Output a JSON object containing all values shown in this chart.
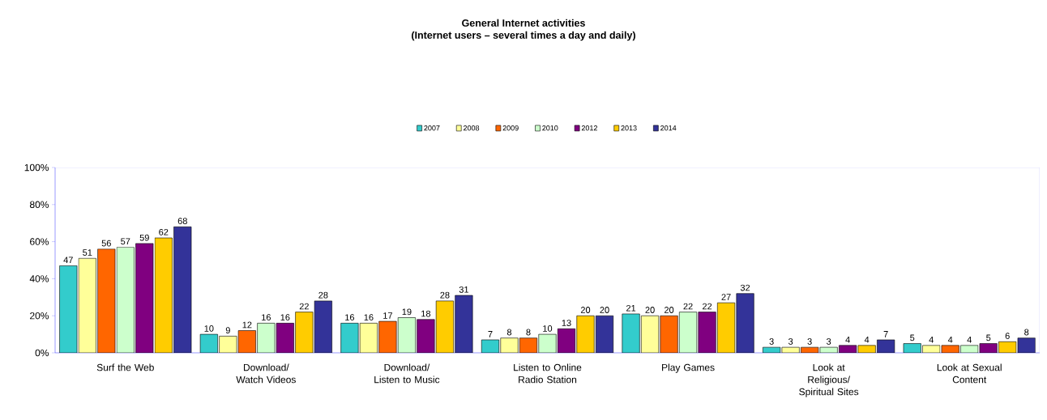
{
  "chart_data": {
    "type": "bar",
    "title": "General Internet activities",
    "subtitle": "(Internet users – several times a day and daily)",
    "categories": [
      "Surf the Web",
      "Download/ Watch Videos",
      "Download/ Listen to Music",
      "Listen to Online Radio Station",
      "Play Games",
      "Look at Religious/ Spiritual Sites",
      "Look at Sexual Content"
    ],
    "series": [
      {
        "name": "2007",
        "color": "#33cccc",
        "values": [
          47,
          10,
          16,
          7,
          21,
          3,
          5
        ]
      },
      {
        "name": "2008",
        "color": "#ffff99",
        "values": [
          51,
          9,
          16,
          8,
          20,
          3,
          4
        ]
      },
      {
        "name": "2009",
        "color": "#ff6600",
        "values": [
          56,
          12,
          17,
          8,
          20,
          3,
          4
        ]
      },
      {
        "name": "2010",
        "color": "#ccffcc",
        "values": [
          57,
          16,
          19,
          10,
          22,
          3,
          4
        ]
      },
      {
        "name": "2012",
        "color": "#800080",
        "values": [
          59,
          16,
          18,
          13,
          22,
          4,
          5
        ]
      },
      {
        "name": "2013",
        "color": "#ffcc00",
        "values": [
          62,
          22,
          28,
          20,
          27,
          4,
          6
        ]
      },
      {
        "name": "2014",
        "color": "#333399",
        "values": [
          68,
          28,
          31,
          20,
          32,
          7,
          8
        ]
      }
    ],
    "ylim": [
      0,
      100
    ],
    "yticks": [
      {
        "value": 0,
        "label": "0%"
      },
      {
        "value": 20,
        "label": "20%"
      },
      {
        "value": 40,
        "label": "40%"
      },
      {
        "value": 60,
        "label": "60%"
      },
      {
        "value": 80,
        "label": "80%"
      },
      {
        "value": 100,
        "label": "100%"
      }
    ],
    "data_labels": true,
    "legend": "top",
    "grid": false
  }
}
